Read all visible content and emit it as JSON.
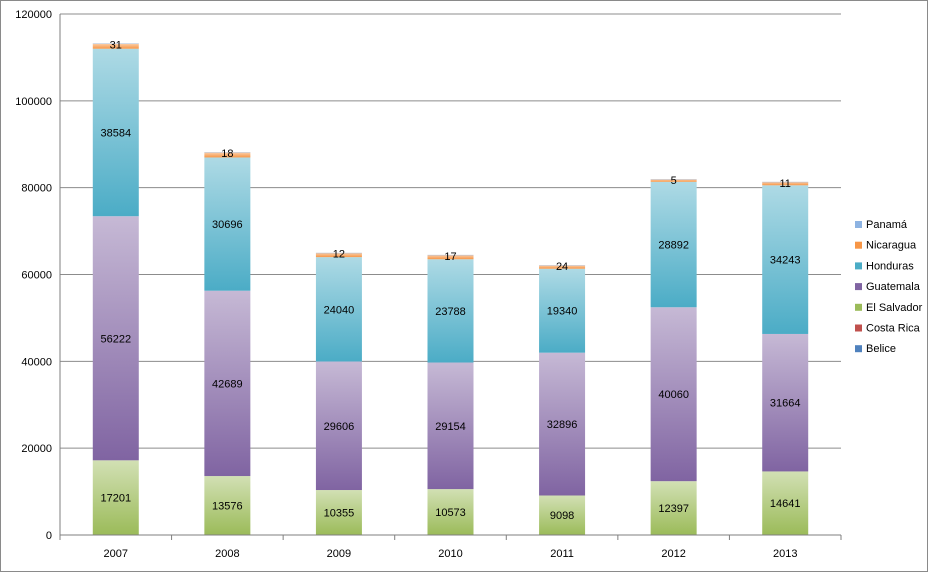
{
  "chart_data": {
    "type": "bar",
    "stacked": true,
    "title": "",
    "xlabel": "",
    "ylabel": "",
    "ylim": [
      0,
      120000
    ],
    "yticks": [
      0,
      20000,
      40000,
      60000,
      80000,
      100000,
      120000
    ],
    "grid": true,
    "legend": "right",
    "categories": [
      "2007",
      "2008",
      "2009",
      "2010",
      "2011",
      "2012",
      "2013"
    ],
    "series": [
      {
        "name": "Belice",
        "color": "#4f81bd",
        "values": [
          0,
          0,
          0,
          0,
          0,
          0,
          0
        ]
      },
      {
        "name": "Costa Rica",
        "color": "#c0504d",
        "values": [
          0,
          0,
          0,
          0,
          0,
          0,
          0
        ]
      },
      {
        "name": "El Salvador",
        "color": "#9bbb59",
        "values": [
          17201,
          13576,
          10355,
          10573,
          9098,
          12397,
          14641
        ]
      },
      {
        "name": "Guatemala",
        "color": "#8064a2",
        "values": [
          56222,
          42689,
          29606,
          29154,
          32896,
          40060,
          31664
        ]
      },
      {
        "name": "Honduras",
        "color": "#4bacc6",
        "values": [
          38584,
          30696,
          24040,
          23788,
          19340,
          28892,
          34243
        ]
      },
      {
        "name": "Nicaragua",
        "color": "#f79646",
        "values": [
          1200,
          1200,
          1000,
          1000,
          800,
          600,
          800
        ]
      },
      {
        "name": "Panamá",
        "color": "#8db3e2",
        "values": [
          31,
          18,
          12,
          17,
          24,
          5,
          11
        ]
      }
    ],
    "data_labels": {
      "El Salvador": [
        "17201",
        "13576",
        "10355",
        "10573",
        "9098",
        "12397",
        "14641"
      ],
      "Guatemala": [
        "56222",
        "42689",
        "29606",
        "29154",
        "32896",
        "40060",
        "31664"
      ],
      "Honduras": [
        "38584",
        "30696",
        "24040",
        "23788",
        "19340",
        "28892",
        "34243"
      ],
      "Panamá": [
        "31",
        "18",
        "12",
        "17",
        "24",
        "5",
        "11"
      ]
    },
    "legend_order": [
      "Panamá",
      "Nicaragua",
      "Honduras",
      "Guatemala",
      "El Salvador",
      "Costa Rica",
      "Belice"
    ]
  }
}
